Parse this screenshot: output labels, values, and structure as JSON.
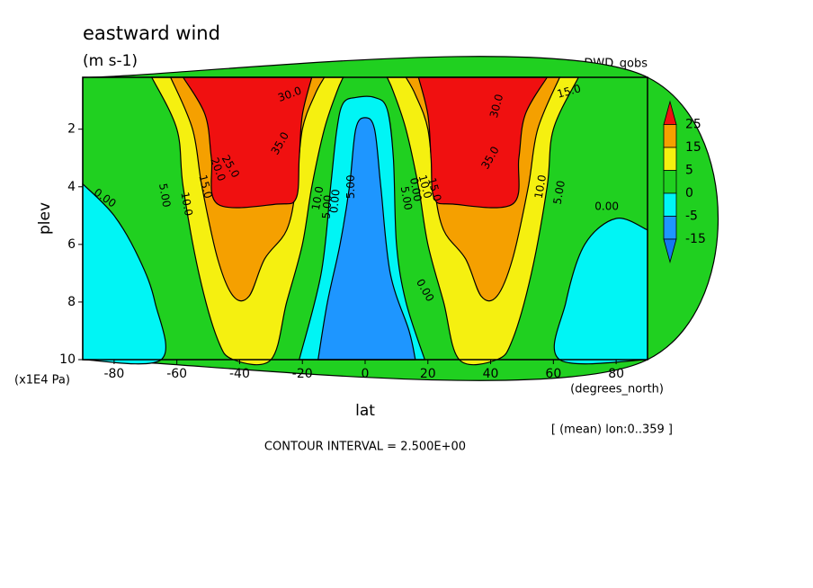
{
  "chart_data": {
    "type": "contour",
    "title": "eastward wind",
    "subtitle": "(m s-1)",
    "source": "DWD_qobs",
    "x_label": "lat",
    "y_label": "plev",
    "x_unit": "(degrees_north)",
    "y_unit": "(x1E4 Pa)",
    "note": "[ (mean) lon:0..359 ]",
    "footer": "CONTOUR INTERVAL = 2.500E+00",
    "xlim": [
      -90,
      90
    ],
    "xticks": [
      -80,
      -60,
      -40,
      -20,
      0,
      20,
      40,
      60,
      80
    ],
    "ylim": [
      10,
      0.2
    ],
    "yticks": [
      2,
      4,
      6,
      8,
      10
    ],
    "colorbar": {
      "levels": [
        25,
        15,
        5,
        0,
        -5,
        -15
      ],
      "colors": [
        "#f01010",
        "#f5a000",
        "#f5f010",
        "#20d020",
        "#00f5f5",
        "#1e96ff",
        "#1478f0"
      ]
    },
    "contour_labels": [
      "0.00",
      "5.00",
      "10.0",
      "15.0",
      "20.0",
      "25.0",
      "35.0",
      "30.0",
      "10.0",
      "5.00",
      "0.00",
      "5.00",
      "0.00",
      "5.00",
      "0.00",
      "10.0",
      "15.0",
      "35.0",
      "30.0",
      "15.0",
      "10.0",
      "5.00",
      "0.00"
    ]
  }
}
